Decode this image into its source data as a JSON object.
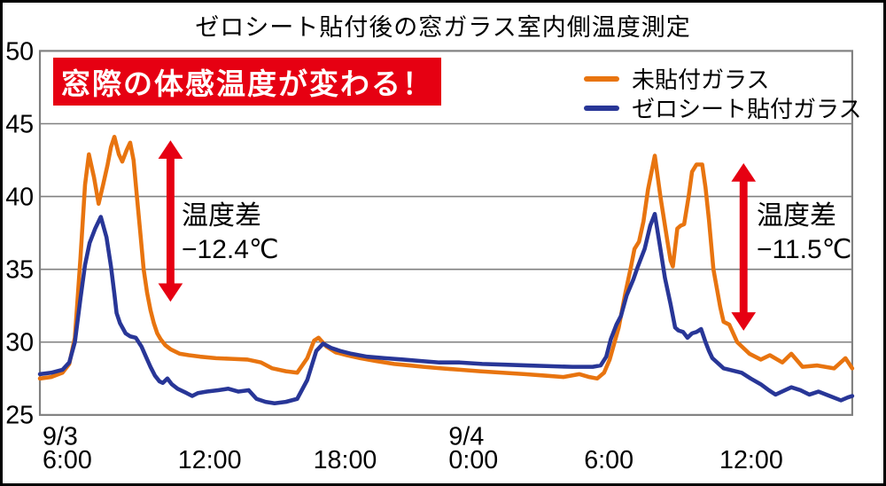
{
  "title": "ゼロシート貼付後の窓ガラス室内側温度測定",
  "banner": {
    "text": "窓際の体感温度が変わる！"
  },
  "colors": {
    "accent_red": "#e60012",
    "series_untreated": "#e8740f",
    "series_treated": "#283697",
    "grid": "#808080",
    "frame": "#808080",
    "text": "#000000",
    "background": "#ffffff"
  },
  "legend": {
    "items": [
      {
        "label": "未貼付ガラス"
      },
      {
        "label": "ゼロシート貼付ガラス"
      }
    ]
  },
  "annotations": {
    "left": {
      "line1": "温度差",
      "line2": "−12.4℃"
    },
    "right": {
      "line1": "温度差",
      "line2": "−11.5℃"
    }
  },
  "chart_data": {
    "type": "line",
    "title": "ゼロシート貼付後の窓ガラス室内側温度測定",
    "grid": "horizontal-only",
    "legend_position": "top-right-inside",
    "y_axis": {
      "min": 25,
      "max": 50,
      "tick_step": 5,
      "ticks": [
        25,
        30,
        35,
        40,
        45,
        50
      ],
      "unit": "℃"
    },
    "x_axis": {
      "hours_span": 36,
      "start": "9/3 6:00",
      "end": "9/4 18:00",
      "ticks": [
        {
          "h": 0,
          "time": "6:00",
          "date": "9/3"
        },
        {
          "h": 6,
          "time": "12:00"
        },
        {
          "h": 12,
          "time": "18:00"
        },
        {
          "h": 18,
          "time": "0:00",
          "date": "9/4"
        },
        {
          "h": 24,
          "time": "6:00"
        },
        {
          "h": 30,
          "time": "12:00"
        }
      ]
    },
    "series": [
      {
        "name": "未貼付ガラス",
        "color": "#e8740f",
        "points": [
          [
            0,
            27.5
          ],
          [
            0.5,
            27.6
          ],
          [
            1,
            27.9
          ],
          [
            1.3,
            28.5
          ],
          [
            1.55,
            30.3
          ],
          [
            1.8,
            35.8
          ],
          [
            2.0,
            40.8
          ],
          [
            2.17,
            42.9
          ],
          [
            2.4,
            41.3
          ],
          [
            2.6,
            39.5
          ],
          [
            2.8,
            40.8
          ],
          [
            3.0,
            42.2
          ],
          [
            3.15,
            43.4
          ],
          [
            3.3,
            44.1
          ],
          [
            3.5,
            42.9
          ],
          [
            3.65,
            42.4
          ],
          [
            3.85,
            43.2
          ],
          [
            4.0,
            43.7
          ],
          [
            4.15,
            42.5
          ],
          [
            4.3,
            40.0
          ],
          [
            4.45,
            37.5
          ],
          [
            4.6,
            35.0
          ],
          [
            4.75,
            33.4
          ],
          [
            4.9,
            32.2
          ],
          [
            5.05,
            31.3
          ],
          [
            5.2,
            30.6
          ],
          [
            5.35,
            30.2
          ],
          [
            5.55,
            29.8
          ],
          [
            5.8,
            29.5
          ],
          [
            6.2,
            29.2
          ],
          [
            6.6,
            29.1
          ],
          [
            7.1,
            29.0
          ],
          [
            7.8,
            28.9
          ],
          [
            8.5,
            28.85
          ],
          [
            9.2,
            28.8
          ],
          [
            9.8,
            28.6
          ],
          [
            10.3,
            28.2
          ],
          [
            10.9,
            28.0
          ],
          [
            11.4,
            27.9
          ],
          [
            11.85,
            28.9
          ],
          [
            12.15,
            30.1
          ],
          [
            12.35,
            30.3
          ],
          [
            12.7,
            29.7
          ],
          [
            13.1,
            29.3
          ],
          [
            13.6,
            29.1
          ],
          [
            14.2,
            28.9
          ],
          [
            14.9,
            28.7
          ],
          [
            15.7,
            28.5
          ],
          [
            16.4,
            28.4
          ],
          [
            17.0,
            28.3
          ],
          [
            17.8,
            28.2
          ],
          [
            18.6,
            28.1
          ],
          [
            19.5,
            28.0
          ],
          [
            20.5,
            27.9
          ],
          [
            21.5,
            27.8
          ],
          [
            22.4,
            27.7
          ],
          [
            23.2,
            27.6
          ],
          [
            23.9,
            27.8
          ],
          [
            24.35,
            27.6
          ],
          [
            24.7,
            27.5
          ],
          [
            25.0,
            27.9
          ],
          [
            25.25,
            28.8
          ],
          [
            25.65,
            31.0
          ],
          [
            25.95,
            33.4
          ],
          [
            26.2,
            35.2
          ],
          [
            26.35,
            36.4
          ],
          [
            26.55,
            36.9
          ],
          [
            26.75,
            38.3
          ],
          [
            26.95,
            40.5
          ],
          [
            27.25,
            42.8
          ],
          [
            27.5,
            40.0
          ],
          [
            27.8,
            37.0
          ],
          [
            27.95,
            35.6
          ],
          [
            28.05,
            35.2
          ],
          [
            28.25,
            37.8
          ],
          [
            28.4,
            38.0
          ],
          [
            28.55,
            38.1
          ],
          [
            28.75,
            40.0
          ],
          [
            28.9,
            41.7
          ],
          [
            29.1,
            42.2
          ],
          [
            29.35,
            42.2
          ],
          [
            29.5,
            40.6
          ],
          [
            29.65,
            38.4
          ],
          [
            29.85,
            35.0
          ],
          [
            30.15,
            32.4
          ],
          [
            30.3,
            31.4
          ],
          [
            30.55,
            31.2
          ],
          [
            30.9,
            30.0
          ],
          [
            31.45,
            29.2
          ],
          [
            31.95,
            28.8
          ],
          [
            32.35,
            29.1
          ],
          [
            32.9,
            28.6
          ],
          [
            33.3,
            29.2
          ],
          [
            33.8,
            28.3
          ],
          [
            34.45,
            28.4
          ],
          [
            35.2,
            28.2
          ],
          [
            35.7,
            28.9
          ],
          [
            36,
            28.2
          ]
        ]
      },
      {
        "name": "ゼロシート貼付ガラス",
        "color": "#283697",
        "points": [
          [
            0,
            27.8
          ],
          [
            0.5,
            27.9
          ],
          [
            1,
            28.1
          ],
          [
            1.3,
            28.6
          ],
          [
            1.55,
            30.0
          ],
          [
            1.8,
            33.0
          ],
          [
            2.0,
            35.3
          ],
          [
            2.2,
            36.8
          ],
          [
            2.45,
            37.8
          ],
          [
            2.7,
            38.6
          ],
          [
            2.95,
            37.2
          ],
          [
            3.15,
            35.2
          ],
          [
            3.3,
            33.3
          ],
          [
            3.4,
            32.0
          ],
          [
            3.55,
            31.3
          ],
          [
            3.8,
            30.6
          ],
          [
            4.0,
            30.4
          ],
          [
            4.25,
            30.3
          ],
          [
            4.5,
            29.7
          ],
          [
            4.7,
            29.0
          ],
          [
            4.9,
            28.3
          ],
          [
            5.1,
            27.7
          ],
          [
            5.3,
            27.3
          ],
          [
            5.45,
            27.2
          ],
          [
            5.65,
            27.5
          ],
          [
            5.85,
            27.1
          ],
          [
            6.1,
            26.8
          ],
          [
            6.5,
            26.5
          ],
          [
            6.75,
            26.3
          ],
          [
            7.0,
            26.5
          ],
          [
            7.4,
            26.6
          ],
          [
            7.9,
            26.7
          ],
          [
            8.35,
            26.8
          ],
          [
            8.8,
            26.6
          ],
          [
            9.25,
            26.7
          ],
          [
            9.6,
            26.1
          ],
          [
            10.0,
            25.9
          ],
          [
            10.4,
            25.8
          ],
          [
            10.9,
            25.9
          ],
          [
            11.4,
            26.1
          ],
          [
            11.85,
            27.4
          ],
          [
            12.25,
            29.4
          ],
          [
            12.55,
            29.9
          ],
          [
            12.9,
            29.6
          ],
          [
            13.3,
            29.4
          ],
          [
            13.8,
            29.2
          ],
          [
            14.5,
            29.0
          ],
          [
            15.3,
            28.9
          ],
          [
            16.1,
            28.8
          ],
          [
            16.9,
            28.7
          ],
          [
            17.7,
            28.6
          ],
          [
            18.6,
            28.6
          ],
          [
            19.6,
            28.5
          ],
          [
            20.6,
            28.45
          ],
          [
            21.6,
            28.4
          ],
          [
            22.6,
            28.35
          ],
          [
            23.6,
            28.3
          ],
          [
            24.5,
            28.3
          ],
          [
            24.85,
            28.4
          ],
          [
            25.1,
            29.0
          ],
          [
            25.3,
            30.2
          ],
          [
            25.55,
            31.2
          ],
          [
            25.75,
            31.8
          ],
          [
            26.0,
            33.2
          ],
          [
            26.3,
            34.3
          ],
          [
            26.5,
            35.2
          ],
          [
            26.8,
            36.4
          ],
          [
            27.05,
            38.0
          ],
          [
            27.25,
            38.8
          ],
          [
            27.5,
            36.4
          ],
          [
            27.7,
            34.4
          ],
          [
            27.95,
            32.6
          ],
          [
            28.15,
            31.0
          ],
          [
            28.3,
            30.8
          ],
          [
            28.5,
            30.7
          ],
          [
            28.7,
            30.3
          ],
          [
            28.9,
            30.6
          ],
          [
            29.1,
            30.7
          ],
          [
            29.3,
            30.9
          ],
          [
            29.5,
            30.0
          ],
          [
            29.65,
            29.4
          ],
          [
            29.8,
            28.9
          ],
          [
            30.3,
            28.2
          ],
          [
            31.1,
            27.9
          ],
          [
            31.5,
            27.5
          ],
          [
            31.95,
            27.1
          ],
          [
            32.3,
            26.7
          ],
          [
            32.6,
            26.4
          ],
          [
            33.3,
            26.9
          ],
          [
            33.7,
            26.7
          ],
          [
            34.1,
            26.4
          ],
          [
            34.5,
            26.6
          ],
          [
            35.0,
            26.3
          ],
          [
            35.5,
            26.0
          ],
          [
            35.8,
            26.2
          ],
          [
            36,
            26.3
          ]
        ]
      }
    ]
  }
}
